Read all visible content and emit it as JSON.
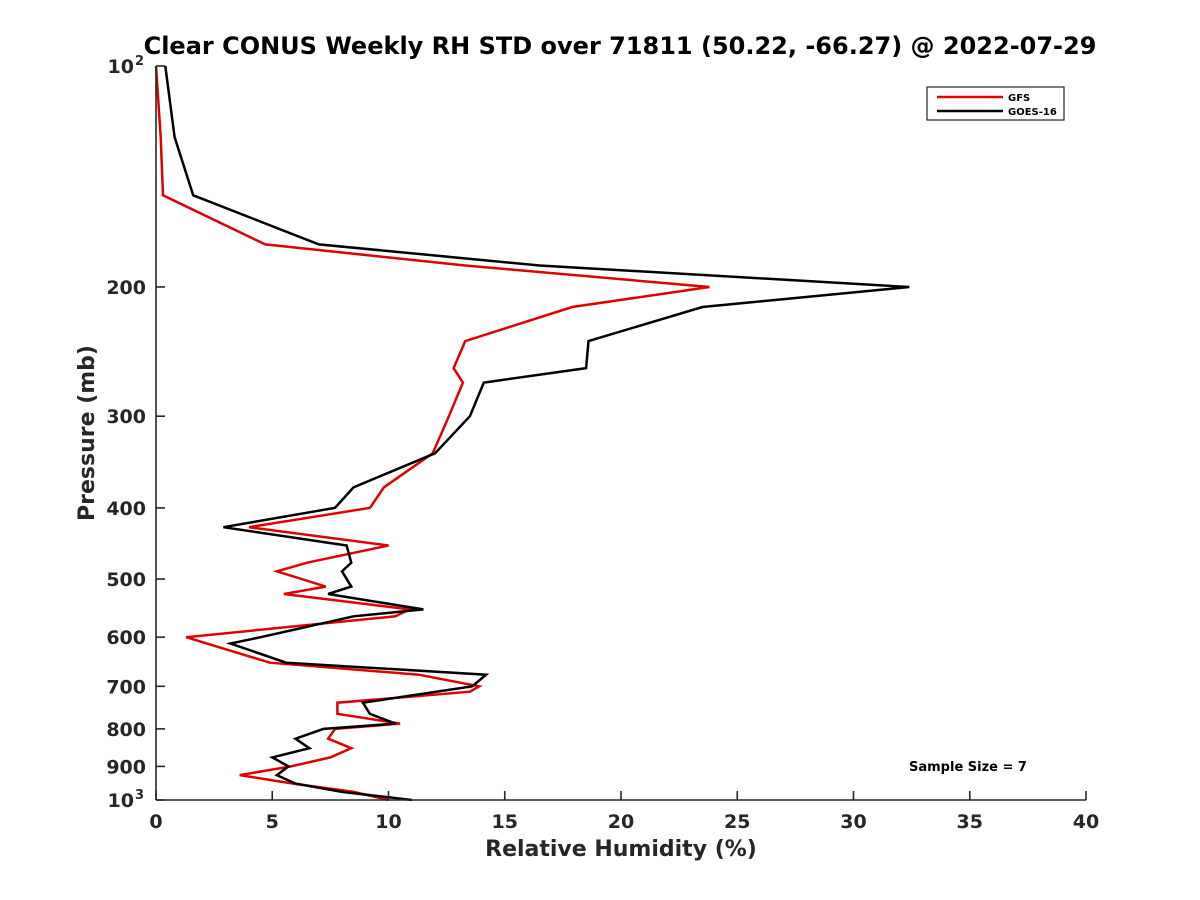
{
  "chart_data": {
    "type": "line",
    "title": "Clear CONUS Weekly RH STD over 71811 (50.22, -66.27) @ 2022-07-29",
    "xlabel": "Relative Humidity (%)",
    "ylabel": "Pressure (mb)",
    "xlim": [
      0,
      40
    ],
    "ylim": [
      100,
      1000
    ],
    "yscale": "log",
    "y_reversed": true,
    "grid": false,
    "legend_position": "top-right",
    "annotation": "Sample Size = 7",
    "x_ticks": [
      "0",
      "5",
      "10",
      "15",
      "20",
      "25",
      "30",
      "35",
      "40"
    ],
    "y_ticks": [
      {
        "value": 100,
        "base": "10",
        "exp": "2"
      },
      {
        "value": 200,
        "label": "200"
      },
      {
        "value": 300,
        "label": "300"
      },
      {
        "value": 400,
        "label": "400"
      },
      {
        "value": 500,
        "label": "500"
      },
      {
        "value": 600,
        "label": "600"
      },
      {
        "value": 700,
        "label": "700"
      },
      {
        "value": 800,
        "label": "800"
      },
      {
        "value": 900,
        "label": "900"
      },
      {
        "value": 1000,
        "base": "10",
        "exp": "3"
      }
    ],
    "series": [
      {
        "name": "GFS",
        "color": "#e00000",
        "points": [
          [
            0.0,
            100
          ],
          [
            0.2,
            125
          ],
          [
            0.3,
            150
          ],
          [
            4.7,
            175
          ],
          [
            13.3,
            187
          ],
          [
            23.8,
            200
          ],
          [
            17.9,
            213
          ],
          [
            13.3,
            237
          ],
          [
            12.8,
            258
          ],
          [
            13.2,
            270
          ],
          [
            12.6,
            300
          ],
          [
            11.9,
            337
          ],
          [
            9.8,
            375
          ],
          [
            9.2,
            400
          ],
          [
            4.0,
            425
          ],
          [
            10.0,
            450
          ],
          [
            6.5,
            475
          ],
          [
            5.2,
            488
          ],
          [
            7.3,
            512
          ],
          [
            5.5,
            524
          ],
          [
            10.9,
            550
          ],
          [
            10.3,
            562
          ],
          [
            1.3,
            600
          ],
          [
            4.9,
            650
          ],
          [
            11.3,
            675
          ],
          [
            13.9,
            700
          ],
          [
            13.5,
            712
          ],
          [
            7.8,
            737
          ],
          [
            7.8,
            763
          ],
          [
            10.5,
            787
          ],
          [
            7.7,
            800
          ],
          [
            7.4,
            825
          ],
          [
            8.4,
            850
          ],
          [
            7.5,
            875
          ],
          [
            5.8,
            900
          ],
          [
            3.6,
            925
          ],
          [
            5.9,
            950
          ],
          [
            8.5,
            975
          ],
          [
            10.0,
            1000
          ]
        ]
      },
      {
        "name": "GOES-16",
        "color": "#000000",
        "points": [
          [
            0.4,
            100
          ],
          [
            0.8,
            125
          ],
          [
            1.6,
            150
          ],
          [
            7.0,
            175
          ],
          [
            16.5,
            187
          ],
          [
            32.4,
            200
          ],
          [
            23.5,
            213
          ],
          [
            18.6,
            237
          ],
          [
            18.5,
            258
          ],
          [
            14.1,
            270
          ],
          [
            13.5,
            300
          ],
          [
            12.0,
            337
          ],
          [
            8.5,
            375
          ],
          [
            7.7,
            400
          ],
          [
            2.9,
            425
          ],
          [
            8.2,
            450
          ],
          [
            8.4,
            475
          ],
          [
            8.0,
            488
          ],
          [
            8.4,
            512
          ],
          [
            7.4,
            524
          ],
          [
            11.5,
            550
          ],
          [
            8.5,
            562
          ],
          [
            4.5,
            600
          ],
          [
            3.2,
            612
          ],
          [
            5.6,
            650
          ],
          [
            14.2,
            675
          ],
          [
            13.6,
            700
          ],
          [
            8.9,
            737
          ],
          [
            9.2,
            763
          ],
          [
            10.3,
            787
          ],
          [
            7.2,
            800
          ],
          [
            6.0,
            825
          ],
          [
            6.6,
            850
          ],
          [
            5.0,
            875
          ],
          [
            5.7,
            900
          ],
          [
            5.2,
            925
          ],
          [
            6.0,
            950
          ],
          [
            8.0,
            975
          ],
          [
            11.0,
            1000
          ]
        ]
      }
    ]
  }
}
